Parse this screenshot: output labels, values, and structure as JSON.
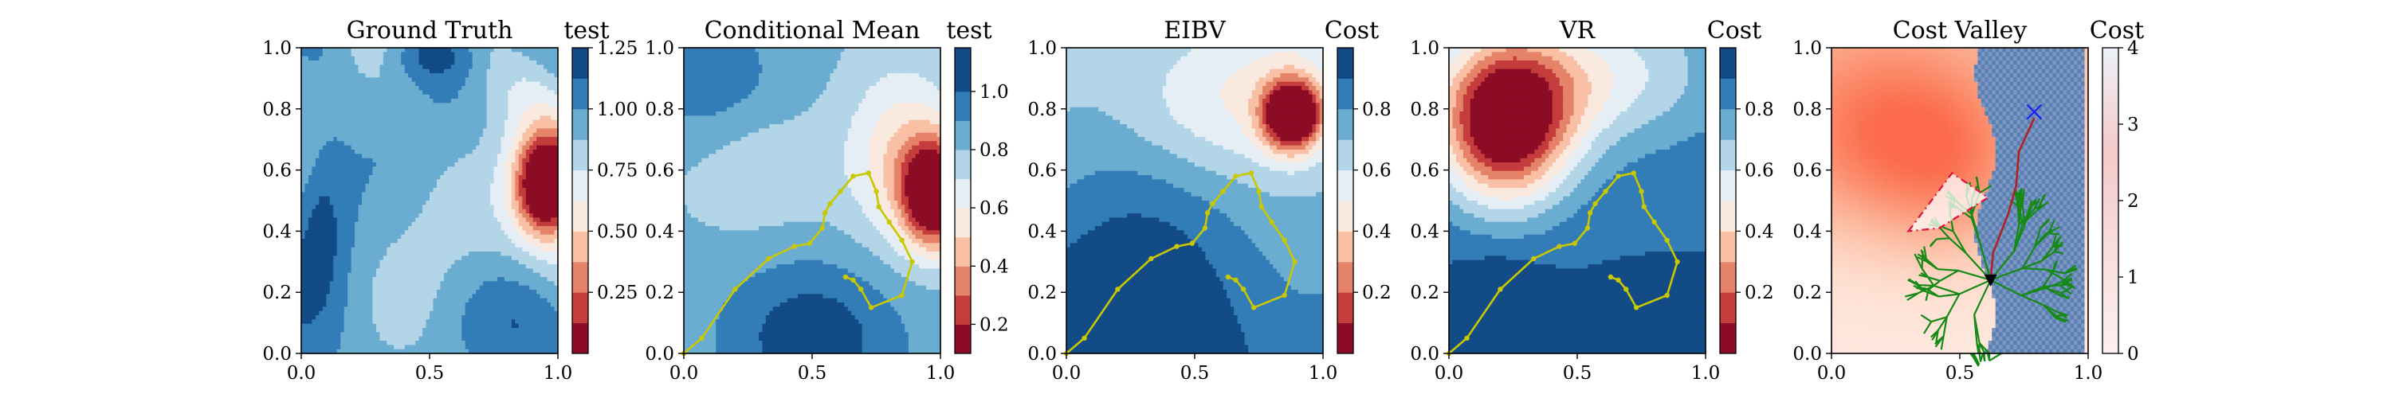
{
  "chart_data": [
    {
      "type": "heatmap",
      "title": "Ground Truth",
      "colorbar_label": "test",
      "colormap": "RdBu",
      "xlim": [
        0,
        1
      ],
      "ylim": [
        0,
        1
      ],
      "xticks": [
        "0.0",
        "0.5",
        "1.0"
      ],
      "yticks": [
        "0.0",
        "0.2",
        "0.4",
        "0.6",
        "0.8",
        "1.0"
      ],
      "clim": [
        0.0,
        1.25
      ],
      "cbar_ticks": [
        "0.25",
        "0.50",
        "0.75",
        "1.00",
        "1.25"
      ],
      "cbar_tick_values": [
        0.25,
        0.5,
        0.75,
        1.0,
        1.25
      ],
      "levels": [
        0.0,
        0.125,
        0.25,
        0.375,
        0.5,
        0.625,
        0.75,
        0.875,
        1.0,
        1.125,
        1.25
      ],
      "field": "ground_truth"
    },
    {
      "type": "heatmap",
      "title": "Conditional Mean",
      "colorbar_label": "test",
      "colormap": "RdBu",
      "xlim": [
        0,
        1
      ],
      "ylim": [
        0,
        1
      ],
      "xticks": [
        "0.0",
        "0.5",
        "1.0"
      ],
      "yticks": [
        "0.0",
        "0.2",
        "0.4",
        "0.6",
        "0.8",
        "1.0"
      ],
      "clim": [
        0.1,
        1.15
      ],
      "cbar_ticks": [
        "0.2",
        "0.4",
        "0.6",
        "0.8",
        "1.0"
      ],
      "cbar_tick_values": [
        0.2,
        0.4,
        0.6,
        0.8,
        1.0
      ],
      "levels": [
        0.1,
        0.2,
        0.3,
        0.4,
        0.5,
        0.6,
        0.7,
        0.8,
        0.9,
        1.0,
        1.15
      ],
      "field": "conditional_mean",
      "path": [
        [
          0,
          0
        ],
        [
          0.07,
          0.05
        ],
        [
          0.2,
          0.21
        ],
        [
          0.33,
          0.31
        ],
        [
          0.43,
          0.35
        ],
        [
          0.49,
          0.36
        ],
        [
          0.54,
          0.41
        ],
        [
          0.55,
          0.46
        ],
        [
          0.57,
          0.49
        ],
        [
          0.61,
          0.53
        ],
        [
          0.66,
          0.58
        ],
        [
          0.72,
          0.59
        ],
        [
          0.75,
          0.53
        ],
        [
          0.76,
          0.48
        ],
        [
          0.8,
          0.43
        ],
        [
          0.85,
          0.37
        ],
        [
          0.89,
          0.3
        ],
        [
          0.85,
          0.19
        ],
        [
          0.73,
          0.15
        ],
        [
          0.69,
          0.21
        ],
        [
          0.66,
          0.24
        ],
        [
          0.63,
          0.25
        ]
      ],
      "path_color": "#c8c800"
    },
    {
      "type": "heatmap",
      "title": "EIBV",
      "colorbar_label": "Cost",
      "colormap": "RdBu",
      "xlim": [
        0,
        1
      ],
      "ylim": [
        0,
        1
      ],
      "xticks": [
        "0.0",
        "0.5",
        "1.0"
      ],
      "yticks": [
        "0.0",
        "0.2",
        "0.4",
        "0.6",
        "0.8",
        "1.0"
      ],
      "clim": [
        0.0,
        1.0
      ],
      "cbar_ticks": [
        "0.2",
        "0.4",
        "0.6",
        "0.8"
      ],
      "cbar_tick_values": [
        0.2,
        0.4,
        0.6,
        0.8
      ],
      "levels": [
        0.0,
        0.1,
        0.2,
        0.3,
        0.4,
        0.5,
        0.6,
        0.7,
        0.8,
        0.9,
        1.0
      ],
      "field": "eibv",
      "path": [
        [
          0,
          0
        ],
        [
          0.07,
          0.05
        ],
        [
          0.2,
          0.21
        ],
        [
          0.33,
          0.31
        ],
        [
          0.43,
          0.35
        ],
        [
          0.49,
          0.36
        ],
        [
          0.54,
          0.41
        ],
        [
          0.55,
          0.46
        ],
        [
          0.57,
          0.49
        ],
        [
          0.61,
          0.53
        ],
        [
          0.66,
          0.58
        ],
        [
          0.72,
          0.59
        ],
        [
          0.75,
          0.53
        ],
        [
          0.76,
          0.48
        ],
        [
          0.8,
          0.43
        ],
        [
          0.85,
          0.37
        ],
        [
          0.89,
          0.3
        ],
        [
          0.85,
          0.19
        ],
        [
          0.73,
          0.15
        ],
        [
          0.69,
          0.21
        ],
        [
          0.66,
          0.24
        ],
        [
          0.63,
          0.25
        ]
      ],
      "path_color": "#c8c800"
    },
    {
      "type": "heatmap",
      "title": "VR",
      "colorbar_label": "Cost",
      "colormap": "RdBu",
      "xlim": [
        0,
        1
      ],
      "ylim": [
        0,
        1
      ],
      "xticks": [
        "0.0",
        "0.5",
        "1.0"
      ],
      "yticks": [
        "0.0",
        "0.2",
        "0.4",
        "0.6",
        "0.8",
        "1.0"
      ],
      "clim": [
        0.0,
        1.0
      ],
      "cbar_ticks": [
        "0.2",
        "0.4",
        "0.6",
        "0.8"
      ],
      "cbar_tick_values": [
        0.2,
        0.4,
        0.6,
        0.8
      ],
      "levels": [
        0.0,
        0.1,
        0.2,
        0.3,
        0.4,
        0.5,
        0.6,
        0.7,
        0.8,
        0.9,
        1.0
      ],
      "field": "vr",
      "path": [
        [
          0,
          0
        ],
        [
          0.07,
          0.05
        ],
        [
          0.2,
          0.21
        ],
        [
          0.33,
          0.31
        ],
        [
          0.43,
          0.35
        ],
        [
          0.49,
          0.36
        ],
        [
          0.54,
          0.41
        ],
        [
          0.55,
          0.46
        ],
        [
          0.57,
          0.49
        ],
        [
          0.61,
          0.53
        ],
        [
          0.66,
          0.58
        ],
        [
          0.72,
          0.59
        ],
        [
          0.75,
          0.53
        ],
        [
          0.76,
          0.48
        ],
        [
          0.8,
          0.43
        ],
        [
          0.85,
          0.37
        ],
        [
          0.89,
          0.3
        ],
        [
          0.85,
          0.19
        ],
        [
          0.73,
          0.15
        ],
        [
          0.69,
          0.21
        ],
        [
          0.66,
          0.24
        ],
        [
          0.63,
          0.25
        ]
      ],
      "path_color": "#c8c800"
    },
    {
      "type": "heatmap",
      "title": "Cost Valley",
      "colorbar_label": "Cost",
      "colormap": "Reds",
      "xlim": [
        0,
        1
      ],
      "ylim": [
        0,
        1
      ],
      "xticks": [
        "0.0",
        "0.5",
        "1.0"
      ],
      "yticks": [
        "0.0",
        "0.2",
        "0.4",
        "0.6",
        "0.8",
        "1.0"
      ],
      "clim": [
        0,
        4
      ],
      "cbar_ticks": [
        "0",
        "1",
        "2",
        "3",
        "4"
      ],
      "cbar_tick_values": [
        0,
        1,
        2,
        3,
        4
      ],
      "field": "cost_valley",
      "tree_color": "#168a16",
      "tree_root": [
        0.62,
        0.24
      ],
      "route": [
        [
          0.62,
          0.24
        ],
        [
          0.63,
          0.33
        ],
        [
          0.69,
          0.46
        ],
        [
          0.72,
          0.55
        ],
        [
          0.73,
          0.66
        ],
        [
          0.79,
          0.77
        ]
      ],
      "route_color": "#b22222",
      "start_marker": [
        0.62,
        0.24
      ],
      "target_marker": [
        0.79,
        0.79
      ],
      "polygon": [
        [
          0.3,
          0.4
        ],
        [
          0.47,
          0.59
        ],
        [
          0.61,
          0.51
        ],
        [
          0.42,
          0.41
        ]
      ],
      "polygon_color": "#e0113a",
      "obstacle_region_color": "#5a7fb2"
    }
  ]
}
